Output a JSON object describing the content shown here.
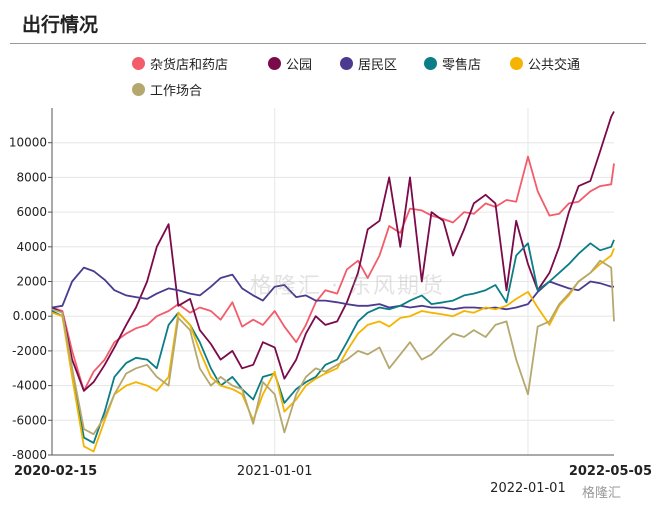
{
  "title": "出行情况",
  "watermark": "格隆汇 · 东风期货",
  "logo": "格隆汇",
  "chart_data": {
    "type": "line",
    "title": "出行情况",
    "xlabel": "",
    "ylabel": "",
    "ylim": [
      -8000,
      12000
    ],
    "xlim": [
      "2020-02-15",
      "2022-05-05"
    ],
    "yticks": [
      -8000,
      -6000,
      -4000,
      -2000,
      0,
      2000,
      4000,
      6000,
      8000,
      10000
    ],
    "ytick_labels": [
      "-8000",
      "-6000",
      "-4000",
      "-2000",
      "0.000",
      "2000",
      "4000",
      "6000",
      "8000",
      "10000"
    ],
    "xtick_labels": [
      "2020-02-15",
      "2021-01-01",
      "2022-01-01",
      "2022-05-05"
    ],
    "grid": true,
    "legend_position": "top",
    "x": [
      "2020-02-15",
      "2020-03-01",
      "2020-03-15",
      "2020-04-01",
      "2020-04-15",
      "2020-05-01",
      "2020-05-15",
      "2020-06-01",
      "2020-06-15",
      "2020-07-01",
      "2020-07-15",
      "2020-08-01",
      "2020-08-15",
      "2020-09-01",
      "2020-09-15",
      "2020-10-01",
      "2020-10-15",
      "2020-11-01",
      "2020-11-15",
      "2020-12-01",
      "2020-12-15",
      "2021-01-01",
      "2021-01-15",
      "2021-02-01",
      "2021-02-15",
      "2021-03-01",
      "2021-03-15",
      "2021-04-01",
      "2021-04-15",
      "2021-05-01",
      "2021-05-15",
      "2021-06-01",
      "2021-06-15",
      "2021-07-01",
      "2021-07-15",
      "2021-08-01",
      "2021-08-15",
      "2021-09-01",
      "2021-09-15",
      "2021-10-01",
      "2021-10-15",
      "2021-11-01",
      "2021-11-15",
      "2021-12-01",
      "2021-12-15",
      "2022-01-01",
      "2022-01-15",
      "2022-02-01",
      "2022-02-15",
      "2022-03-01",
      "2022-03-15",
      "2022-04-01",
      "2022-04-15",
      "2022-05-01",
      "2022-05-05"
    ],
    "series": [
      {
        "name": "杂货店和药店",
        "color": "#f25c6b",
        "values": [
          500,
          300,
          -2000,
          -4300,
          -3200,
          -2500,
          -1500,
          -1000,
          -700,
          -500,
          0,
          300,
          700,
          200,
          500,
          300,
          -200,
          800,
          -600,
          -200,
          -500,
          300,
          -600,
          -1500,
          -500,
          800,
          1500,
          1300,
          2700,
          3200,
          2200,
          3500,
          5200,
          4800,
          6200,
          6100,
          5800,
          5600,
          5400,
          6000,
          5900,
          6500,
          6300,
          6700,
          6600,
          9200,
          7200,
          5800,
          5900,
          6500,
          6600,
          7200,
          7500,
          7600,
          8800
        ]
      },
      {
        "name": "公园",
        "color": "#7a0a4a",
        "values": [
          500,
          200,
          -2500,
          -4300,
          -3800,
          -2800,
          -1800,
          -500,
          500,
          2000,
          4000,
          5300,
          600,
          1000,
          -800,
          -1600,
          -2500,
          -2000,
          -3000,
          -2800,
          -1500,
          -1800,
          -3600,
          -2500,
          -1000,
          0,
          -500,
          -300,
          800,
          2500,
          5000,
          5500,
          8000,
          4000,
          8000,
          2000,
          6000,
          5500,
          3500,
          5000,
          6500,
          7000,
          6500,
          1500,
          5500,
          3000,
          1500,
          2500,
          4000,
          6000,
          7500,
          7800,
          9500,
          11500,
          11800
        ]
      },
      {
        "name": "居民区",
        "color": "#4b3a8f",
        "values": [
          500,
          600,
          2000,
          2800,
          2600,
          2100,
          1500,
          1200,
          1100,
          1000,
          1300,
          1600,
          1500,
          1300,
          1200,
          1700,
          2200,
          2400,
          1600,
          1200,
          900,
          1700,
          1800,
          1100,
          1200,
          900,
          900,
          800,
          700,
          600,
          600,
          700,
          500,
          600,
          500,
          600,
          500,
          500,
          400,
          500,
          500,
          450,
          500,
          400,
          500,
          700,
          1400,
          2000,
          1800,
          1600,
          1500,
          2000,
          1900,
          1700,
          1700
        ]
      },
      {
        "name": "零售店",
        "color": "#0b7d86",
        "values": [
          300,
          0,
          -3000,
          -7000,
          -7300,
          -5500,
          -3500,
          -2700,
          -2400,
          -2500,
          -3000,
          -500,
          200,
          -500,
          -1500,
          -3000,
          -4000,
          -3500,
          -4200,
          -4800,
          -3500,
          -3300,
          -5000,
          -4200,
          -3800,
          -3500,
          -2800,
          -2500,
          -1500,
          -300,
          200,
          500,
          400,
          600,
          900,
          1200,
          700,
          800,
          900,
          1200,
          1300,
          1500,
          1800,
          800,
          3500,
          4200,
          1500,
          2000,
          2500,
          3000,
          3600,
          4200,
          3800,
          4000,
          4400
        ]
      },
      {
        "name": "公共交通",
        "color": "#f4b400",
        "values": [
          200,
          0,
          -3500,
          -7500,
          -7800,
          -6000,
          -4500,
          -4000,
          -3800,
          -4000,
          -4300,
          -3500,
          200,
          -500,
          -2000,
          -3500,
          -4000,
          -4200,
          -4500,
          -6000,
          -4500,
          -3200,
          -5500,
          -4800,
          -4000,
          -3600,
          -3300,
          -3000,
          -2000,
          -1000,
          -500,
          -300,
          -600,
          -100,
          0,
          300,
          200,
          100,
          0,
          300,
          200,
          500,
          400,
          600,
          1000,
          1400,
          500,
          -500,
          600,
          1200,
          2000,
          2500,
          3000,
          3500,
          3900
        ]
      },
      {
        "name": "工作场合",
        "color": "#b5a86e",
        "values": [
          400,
          200,
          -3000,
          -6500,
          -6800,
          -5800,
          -4500,
          -3300,
          -3000,
          -2800,
          -3500,
          -4000,
          -100,
          -800,
          -3000,
          -4000,
          -3500,
          -4000,
          -4200,
          -6200,
          -3800,
          -4500,
          -6700,
          -4500,
          -3500,
          -3000,
          -3200,
          -2800,
          -2500,
          -2000,
          -2200,
          -1800,
          -3000,
          -2200,
          -1500,
          -2500,
          -2200,
          -1500,
          -1000,
          -1200,
          -800,
          -1200,
          -500,
          -300,
          -2500,
          -4500,
          -600,
          -300,
          700,
          1300,
          2000,
          2500,
          3200,
          2800,
          -300
        ]
      }
    ]
  }
}
